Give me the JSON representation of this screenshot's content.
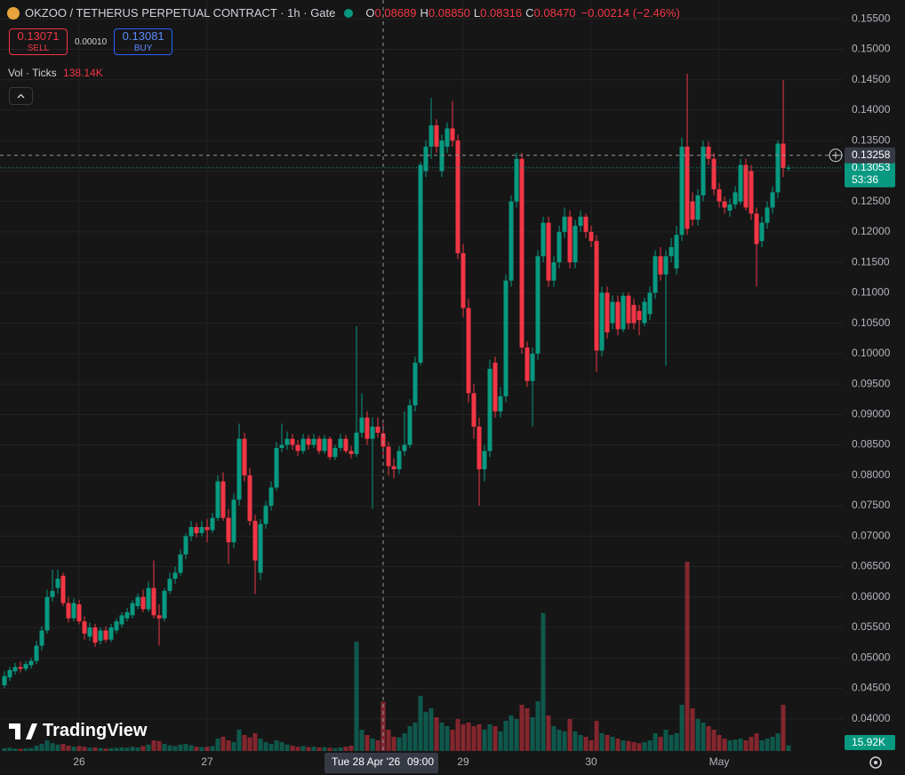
{
  "header": {
    "symbol": "OKZOO / TETHERUS PERPETUAL CONTRACT · 1h · Gate",
    "ohlc": [
      {
        "key": "O",
        "value": "0.08689"
      },
      {
        "key": "H",
        "value": "0.08850"
      },
      {
        "key": "L",
        "value": "0.08316"
      },
      {
        "key": "C",
        "value": "0.08470"
      }
    ],
    "change": "−0.00214 (−2.46%)"
  },
  "trade": {
    "sell_price": "0.13071",
    "sell": "SELL",
    "spread": "0.00010",
    "buy_price": "0.13081",
    "buy": "BUY"
  },
  "volume_legend": {
    "label": "Vol · Ticks",
    "value": "138.14K"
  },
  "logo": "TradingView",
  "chart_data": {
    "type": "candlestick",
    "up_color": "#089981",
    "down_color": "#f23645",
    "grid": true,
    "ohlc": [
      [
        0.0455,
        0.0478,
        0.045,
        0.047
      ],
      [
        0.0468,
        0.0485,
        0.0462,
        0.048
      ],
      [
        0.0478,
        0.0492,
        0.0472,
        0.0485
      ],
      [
        0.0485,
        0.0494,
        0.0476,
        0.0482
      ],
      [
        0.0482,
        0.0495,
        0.0478,
        0.049
      ],
      [
        0.0488,
        0.05,
        0.0482,
        0.0495
      ],
      [
        0.0495,
        0.0528,
        0.049,
        0.052
      ],
      [
        0.052,
        0.0552,
        0.0512,
        0.0545
      ],
      [
        0.0545,
        0.0612,
        0.054,
        0.06
      ],
      [
        0.06,
        0.0645,
        0.0592,
        0.061
      ],
      [
        0.0615,
        0.0645,
        0.0605,
        0.063
      ],
      [
        0.0635,
        0.064,
        0.0585,
        0.059
      ],
      [
        0.059,
        0.06,
        0.0558,
        0.0565
      ],
      [
        0.0565,
        0.0598,
        0.056,
        0.059
      ],
      [
        0.0588,
        0.0595,
        0.0555,
        0.056
      ],
      [
        0.056,
        0.0568,
        0.053,
        0.054
      ],
      [
        0.0535,
        0.0558,
        0.0528,
        0.055
      ],
      [
        0.055,
        0.0556,
        0.0518,
        0.0525
      ],
      [
        0.0528,
        0.055,
        0.0522,
        0.0545
      ],
      [
        0.0545,
        0.0552,
        0.0525,
        0.053
      ],
      [
        0.053,
        0.0556,
        0.0526,
        0.055
      ],
      [
        0.0545,
        0.0565,
        0.054,
        0.056
      ],
      [
        0.0555,
        0.0575,
        0.055,
        0.057
      ],
      [
        0.0565,
        0.0582,
        0.056,
        0.0575
      ],
      [
        0.057,
        0.0595,
        0.0565,
        0.059
      ],
      [
        0.0585,
        0.0606,
        0.058,
        0.06
      ],
      [
        0.06,
        0.0612,
        0.0575,
        0.058
      ],
      [
        0.058,
        0.0625,
        0.0575,
        0.0615
      ],
      [
        0.0615,
        0.066,
        0.0565,
        0.057
      ],
      [
        0.057,
        0.0588,
        0.052,
        0.0565
      ],
      [
        0.0565,
        0.0615,
        0.056,
        0.061
      ],
      [
        0.061,
        0.064,
        0.0605,
        0.063
      ],
      [
        0.063,
        0.065,
        0.0622,
        0.064
      ],
      [
        0.064,
        0.0678,
        0.0635,
        0.067
      ],
      [
        0.067,
        0.0705,
        0.0662,
        0.07
      ],
      [
        0.07,
        0.0725,
        0.0692,
        0.0715
      ],
      [
        0.0715,
        0.0722,
        0.0698,
        0.0705
      ],
      [
        0.0705,
        0.0725,
        0.07,
        0.0715
      ],
      [
        0.0715,
        0.0728,
        0.069,
        0.071
      ],
      [
        0.071,
        0.0738,
        0.0705,
        0.073
      ],
      [
        0.073,
        0.08,
        0.0725,
        0.079
      ],
      [
        0.079,
        0.0805,
        0.0725,
        0.073
      ],
      [
        0.073,
        0.0745,
        0.0655,
        0.069
      ],
      [
        0.069,
        0.077,
        0.068,
        0.076
      ],
      [
        0.076,
        0.0885,
        0.075,
        0.086
      ],
      [
        0.086,
        0.087,
        0.079,
        0.08
      ],
      [
        0.08,
        0.0812,
        0.0718,
        0.0725
      ],
      [
        0.0725,
        0.0735,
        0.0605,
        0.066
      ],
      [
        0.064,
        0.0728,
        0.0628,
        0.072
      ],
      [
        0.072,
        0.0758,
        0.0712,
        0.075
      ],
      [
        0.075,
        0.079,
        0.0742,
        0.078
      ],
      [
        0.078,
        0.0855,
        0.0775,
        0.0845
      ],
      [
        0.0845,
        0.0885,
        0.0838,
        0.085
      ],
      [
        0.085,
        0.0872,
        0.0842,
        0.086
      ],
      [
        0.086,
        0.0868,
        0.0842,
        0.085
      ],
      [
        0.085,
        0.0858,
        0.0832,
        0.084
      ],
      [
        0.084,
        0.0868,
        0.0835,
        0.086
      ],
      [
        0.086,
        0.0866,
        0.0842,
        0.085
      ],
      [
        0.085,
        0.0868,
        0.0845,
        0.086
      ],
      [
        0.086,
        0.0865,
        0.0835,
        0.084
      ],
      [
        0.084,
        0.0866,
        0.0835,
        0.086
      ],
      [
        0.086,
        0.0864,
        0.0825,
        0.083
      ],
      [
        0.083,
        0.085,
        0.0825,
        0.0845
      ],
      [
        0.0845,
        0.0868,
        0.084,
        0.086
      ],
      [
        0.086,
        0.0866,
        0.0836,
        0.084
      ],
      [
        0.084,
        0.0848,
        0.0828,
        0.0835
      ],
      [
        0.0835,
        0.1045,
        0.083,
        0.087
      ],
      [
        0.087,
        0.0935,
        0.0862,
        0.0895
      ],
      [
        0.0895,
        0.0905,
        0.085,
        0.086
      ],
      [
        0.086,
        0.0895,
        0.0745,
        0.088
      ],
      [
        0.088,
        0.0895,
        0.0862,
        0.087
      ],
      [
        0.08689,
        0.0885,
        0.08316,
        0.0847
      ],
      [
        0.0847,
        0.0855,
        0.08,
        0.0815
      ],
      [
        0.0815,
        0.0828,
        0.0795,
        0.081
      ],
      [
        0.081,
        0.0848,
        0.0802,
        0.084
      ],
      [
        0.084,
        0.0905,
        0.0832,
        0.085
      ],
      [
        0.085,
        0.0925,
        0.0845,
        0.0915
      ],
      [
        0.0915,
        0.0995,
        0.0905,
        0.0985
      ],
      [
        0.0985,
        0.1315,
        0.098,
        0.131
      ],
      [
        0.13,
        0.135,
        0.129,
        0.134
      ],
      [
        0.134,
        0.142,
        0.132,
        0.1375
      ],
      [
        0.1375,
        0.1385,
        0.133,
        0.134
      ],
      [
        0.13,
        0.136,
        0.129,
        0.135
      ],
      [
        0.134,
        0.138,
        0.133,
        0.137
      ],
      [
        0.137,
        0.1415,
        0.134,
        0.135
      ],
      [
        0.135,
        0.136,
        0.1155,
        0.1165
      ],
      [
        0.1165,
        0.118,
        0.106,
        0.1075
      ],
      [
        0.1075,
        0.109,
        0.092,
        0.0935
      ],
      [
        0.0935,
        0.095,
        0.086,
        0.088
      ],
      [
        0.088,
        0.0895,
        0.075,
        0.081
      ],
      [
        0.081,
        0.085,
        0.079,
        0.084
      ],
      [
        0.084,
        0.099,
        0.083,
        0.0975
      ],
      [
        0.0985,
        0.0995,
        0.0895,
        0.0905
      ],
      [
        0.0905,
        0.0945,
        0.0895,
        0.093
      ],
      [
        0.093,
        0.113,
        0.092,
        0.112
      ],
      [
        0.112,
        0.126,
        0.111,
        0.125
      ],
      [
        0.125,
        0.133,
        0.124,
        0.132
      ],
      [
        0.132,
        0.133,
        0.1,
        0.101
      ],
      [
        0.101,
        0.102,
        0.0945,
        0.0955
      ],
      [
        0.0955,
        0.101,
        0.088,
        0.1
      ],
      [
        0.1,
        0.117,
        0.099,
        0.116
      ],
      [
        0.116,
        0.1225,
        0.115,
        0.1215
      ],
      [
        0.1215,
        0.1225,
        0.111,
        0.112
      ],
      [
        0.112,
        0.116,
        0.111,
        0.115
      ],
      [
        0.115,
        0.121,
        0.114,
        0.12
      ],
      [
        0.12,
        0.124,
        0.119,
        0.1225
      ],
      [
        0.1225,
        0.1235,
        0.114,
        0.115
      ],
      [
        0.115,
        0.122,
        0.114,
        0.121
      ],
      [
        0.121,
        0.1235,
        0.12,
        0.1225
      ],
      [
        0.1225,
        0.123,
        0.119,
        0.12
      ],
      [
        0.12,
        0.121,
        0.1175,
        0.1185
      ],
      [
        0.1185,
        0.1195,
        0.097,
        0.1005
      ],
      [
        0.1005,
        0.111,
        0.0995,
        0.11
      ],
      [
        0.11,
        0.111,
        0.1025,
        0.1035
      ],
      [
        0.105,
        0.1095,
        0.104,
        0.1085
      ],
      [
        0.1085,
        0.1095,
        0.103,
        0.104
      ],
      [
        0.104,
        0.11,
        0.1035,
        0.1095
      ],
      [
        0.1095,
        0.11,
        0.104,
        0.105
      ],
      [
        0.108,
        0.109,
        0.104,
        0.105
      ],
      [
        0.107,
        0.108,
        0.103,
        0.1055
      ],
      [
        0.105,
        0.1092,
        0.1045,
        0.1085
      ],
      [
        0.1065,
        0.111,
        0.1055,
        0.11
      ],
      [
        0.11,
        0.117,
        0.109,
        0.116
      ],
      [
        0.116,
        0.1175,
        0.112,
        0.113
      ],
      [
        0.113,
        0.117,
        0.098,
        0.116
      ],
      [
        0.116,
        0.119,
        0.115,
        0.1175
      ],
      [
        0.114,
        0.121,
        0.113,
        0.1195
      ],
      [
        0.1195,
        0.1355,
        0.1185,
        0.134
      ],
      [
        0.134,
        0.146,
        0.1195,
        0.1205
      ],
      [
        0.125,
        0.1265,
        0.121,
        0.122
      ],
      [
        0.122,
        0.127,
        0.121,
        0.126
      ],
      [
        0.126,
        0.135,
        0.125,
        0.134
      ],
      [
        0.134,
        0.1348,
        0.131,
        0.132
      ],
      [
        0.132,
        0.133,
        0.126,
        0.127
      ],
      [
        0.127,
        0.128,
        0.124,
        0.125
      ],
      [
        0.125,
        0.1258,
        0.123,
        0.124
      ],
      [
        0.1235,
        0.1255,
        0.1225,
        0.1245
      ],
      [
        0.1245,
        0.1275,
        0.1238,
        0.1265
      ],
      [
        0.125,
        0.132,
        0.1245,
        0.131
      ],
      [
        0.131,
        0.132,
        0.1235,
        0.124
      ],
      [
        0.13,
        0.131,
        0.122,
        0.123
      ],
      [
        0.123,
        0.124,
        0.111,
        0.118
      ],
      [
        0.1185,
        0.1225,
        0.1175,
        0.1215
      ],
      [
        0.1215,
        0.125,
        0.1205,
        0.124
      ],
      [
        0.124,
        0.1275,
        0.123,
        0.1265
      ],
      [
        0.1265,
        0.135,
        0.1255,
        0.1345
      ],
      [
        0.1345,
        0.145,
        0.129,
        0.1305
      ],
      [
        0.1305,
        0.131,
        0.13,
        0.13053
      ]
    ],
    "volume": [
      8000,
      9000,
      7000,
      6000,
      7000,
      8000,
      15000,
      20000,
      30000,
      22000,
      18000,
      20000,
      15000,
      12000,
      14000,
      12000,
      9000,
      10000,
      8000,
      7000,
      8000,
      9000,
      10000,
      9000,
      12000,
      10000,
      14000,
      18000,
      30000,
      28000,
      20000,
      16000,
      14000,
      18000,
      20000,
      16000,
      12000,
      11000,
      12000,
      14000,
      35000,
      40000,
      30000,
      25000,
      60000,
      45000,
      38000,
      50000,
      35000,
      25000,
      20000,
      30000,
      25000,
      18000,
      15000,
      12000,
      14000,
      11000,
      12000,
      10000,
      11000,
      9000,
      8000,
      10000,
      12000,
      15000,
      307000,
      60000,
      45000,
      35000,
      30000,
      138140,
      60000,
      40000,
      38000,
      50000,
      70000,
      80000,
      155000,
      110000,
      120000,
      95000,
      80000,
      70000,
      60000,
      90000,
      75000,
      80000,
      70000,
      75000,
      60000,
      75000,
      70000,
      55000,
      85000,
      100000,
      90000,
      130000,
      120000,
      95000,
      140000,
      388000,
      100000,
      70000,
      60000,
      55000,
      90000,
      55000,
      45000,
      40000,
      30000,
      85000,
      50000,
      45000,
      40000,
      35000,
      30000,
      28000,
      25000,
      22000,
      25000,
      30000,
      50000,
      40000,
      60000,
      45000,
      50000,
      130000,
      532000,
      120000,
      90000,
      80000,
      70000,
      60000,
      45000,
      35000,
      30000,
      32000,
      35000,
      30000,
      40000,
      50000,
      30000,
      35000,
      40000,
      50000,
      130000,
      15920
    ],
    "ylim": [
      0.0347,
      0.1581
    ],
    "yticks": [
      {
        "value": 0.155,
        "label": "0.15500"
      },
      {
        "value": 0.15,
        "label": "0.15000"
      },
      {
        "value": 0.145,
        "label": "0.14500"
      },
      {
        "value": 0.14,
        "label": "0.14000"
      },
      {
        "value": 0.135,
        "label": "0.13500"
      },
      {
        "value": 0.13,
        "label": "0.13000"
      },
      {
        "value": 0.125,
        "label": "0.12500"
      },
      {
        "value": 0.12,
        "label": "0.12000"
      },
      {
        "value": 0.115,
        "label": "0.11500"
      },
      {
        "value": 0.11,
        "label": "0.11000"
      },
      {
        "value": 0.105,
        "label": "0.10500"
      },
      {
        "value": 0.1,
        "label": "0.10000"
      },
      {
        "value": 0.095,
        "label": "0.09500"
      },
      {
        "value": 0.09,
        "label": "0.09000"
      },
      {
        "value": 0.085,
        "label": "0.08500"
      },
      {
        "value": 0.08,
        "label": "0.08000"
      },
      {
        "value": 0.075,
        "label": "0.07500"
      },
      {
        "value": 0.07,
        "label": "0.07000"
      },
      {
        "value": 0.065,
        "label": "0.06500"
      },
      {
        "value": 0.06,
        "label": "0.06000"
      },
      {
        "value": 0.055,
        "label": "0.05500"
      },
      {
        "value": 0.05,
        "label": "0.05000"
      },
      {
        "value": 0.045,
        "label": "0.04500"
      },
      {
        "value": 0.04,
        "label": "0.04000"
      }
    ],
    "xticks": [
      {
        "value": 14,
        "label": "26"
      },
      {
        "value": 38,
        "label": "27"
      },
      {
        "value": 86,
        "label": "29"
      },
      {
        "value": 110,
        "label": "30"
      },
      {
        "value": 134,
        "label": "May"
      }
    ],
    "crosshair": {
      "x": {
        "value": 71,
        "date": "Tue 28 Apr '26",
        "time": "09:00"
      },
      "y": 0.13258
    },
    "last_price": 0.13053,
    "countdown": "53:36",
    "last_volume_label": "15.92K"
  }
}
